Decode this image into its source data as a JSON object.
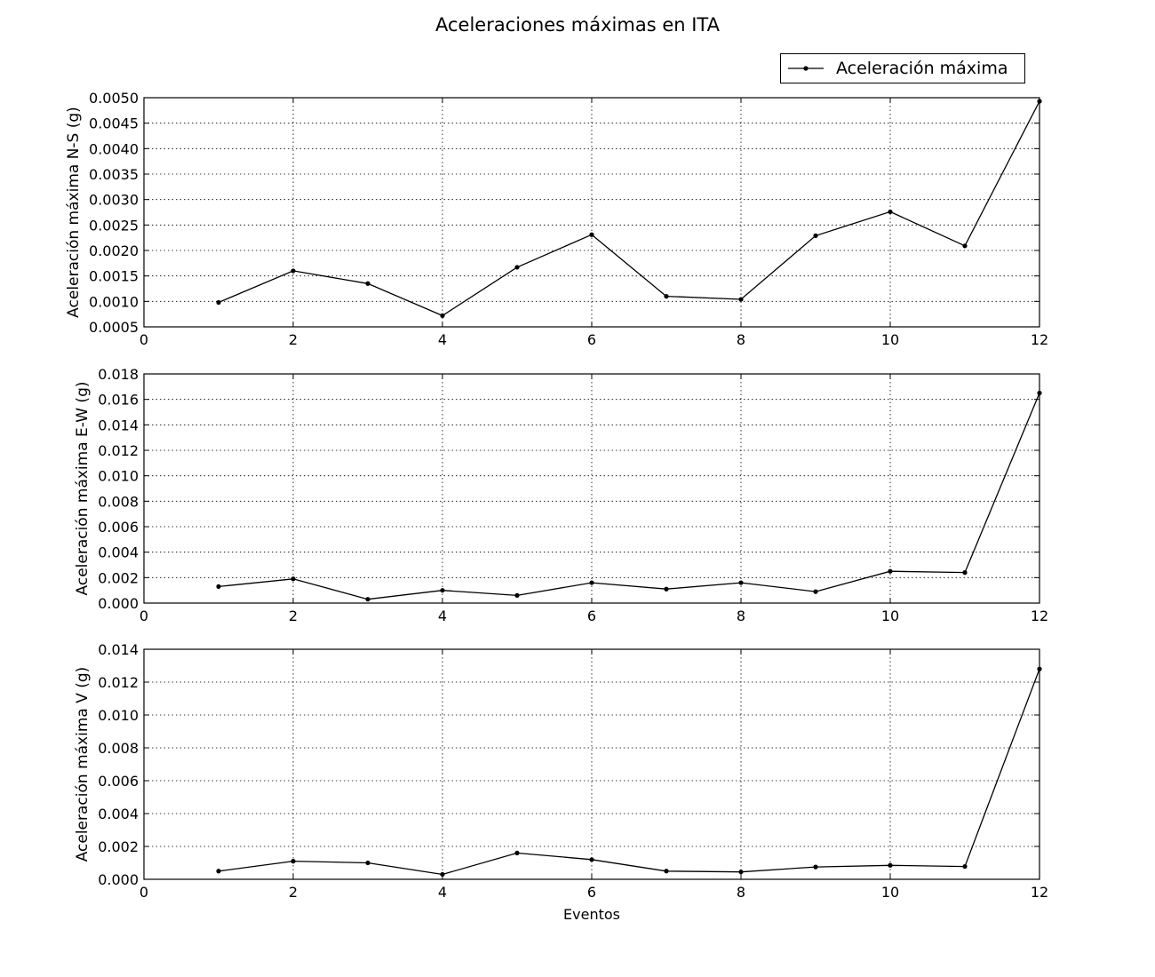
{
  "title": "Aceleraciones máximas en ITA",
  "legend_label": "Aceleración máxima",
  "legend_position": "upper-right",
  "line_color": "#000000",
  "chart_data": [
    {
      "type": "line",
      "ylabel": "Aceleración máxima N-S (g)",
      "xlabel": "",
      "xlim": [
        0,
        12
      ],
      "ylim": [
        0.0005,
        0.005
      ],
      "xticks": [
        0,
        2,
        4,
        6,
        8,
        10,
        12
      ],
      "yticks": [
        0.0005,
        0.001,
        0.0015,
        0.002,
        0.0025,
        0.003,
        0.0035,
        0.004,
        0.0045,
        0.005
      ],
      "ytick_labels": [
        "0.0005",
        "0.0010",
        "0.0015",
        "0.0020",
        "0.0025",
        "0.0030",
        "0.0035",
        "0.0040",
        "0.0045",
        "0.0050"
      ],
      "grid": true,
      "series": [
        {
          "name": "Aceleración máxima",
          "x": [
            1,
            2,
            3,
            4,
            5,
            6,
            7,
            8,
            9,
            10,
            11,
            12
          ],
          "values": [
            0.00098,
            0.0016,
            0.00135,
            0.00072,
            0.00167,
            0.00231,
            0.0011,
            0.00104,
            0.00229,
            0.00276,
            0.00209,
            0.00493
          ]
        }
      ]
    },
    {
      "type": "line",
      "ylabel": "Aceleración máxima E-W (g)",
      "xlabel": "",
      "xlim": [
        0,
        12
      ],
      "ylim": [
        0,
        0.018
      ],
      "xticks": [
        0,
        2,
        4,
        6,
        8,
        10,
        12
      ],
      "yticks": [
        0,
        0.002,
        0.004,
        0.006,
        0.008,
        0.01,
        0.012,
        0.014,
        0.016,
        0.018
      ],
      "ytick_labels": [
        "0.000",
        "0.002",
        "0.004",
        "0.006",
        "0.008",
        "0.010",
        "0.012",
        "0.014",
        "0.016",
        "0.018"
      ],
      "grid": true,
      "series": [
        {
          "name": "Aceleración máxima",
          "x": [
            1,
            2,
            3,
            4,
            5,
            6,
            7,
            8,
            9,
            10,
            11,
            12
          ],
          "values": [
            0.0013,
            0.0019,
            0.0003,
            0.001,
            0.0006,
            0.0016,
            0.0011,
            0.0016,
            0.0009,
            0.0025,
            0.0024,
            0.0165
          ]
        }
      ]
    },
    {
      "type": "line",
      "ylabel": "Aceleración máxima V (g)",
      "xlabel": "Eventos",
      "xlim": [
        0,
        12
      ],
      "ylim": [
        0,
        0.014
      ],
      "xticks": [
        0,
        2,
        4,
        6,
        8,
        10,
        12
      ],
      "yticks": [
        0,
        0.002,
        0.004,
        0.006,
        0.008,
        0.01,
        0.012,
        0.014
      ],
      "ytick_labels": [
        "0.000",
        "0.002",
        "0.004",
        "0.006",
        "0.008",
        "0.010",
        "0.012",
        "0.014"
      ],
      "grid": true,
      "series": [
        {
          "name": "Aceleración máxima",
          "x": [
            1,
            2,
            3,
            4,
            5,
            6,
            7,
            8,
            9,
            10,
            11,
            12
          ],
          "values": [
            0.0005,
            0.0011,
            0.001,
            0.0003,
            0.0016,
            0.0012,
            0.0005,
            0.00045,
            0.00075,
            0.00085,
            0.00078,
            0.0128
          ]
        }
      ]
    }
  ]
}
